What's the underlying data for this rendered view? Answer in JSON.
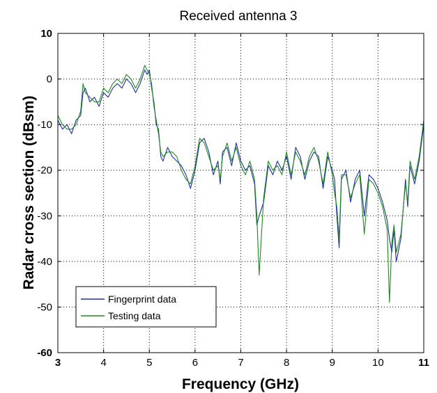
{
  "chart_data": {
    "type": "line",
    "title": "Received antenna 3",
    "xlabel": "Frequency (GHz)",
    "ylabel": "Radar cross section (dBsm)",
    "xlim": [
      3,
      11
    ],
    "ylim": [
      -60,
      10
    ],
    "x_ticks": [
      "3",
      "4",
      "5",
      "6",
      "7",
      "8",
      "9",
      "10",
      "11"
    ],
    "y_ticks": [
      "10",
      "0",
      "-10",
      "-20",
      "-30",
      "-40",
      "-50",
      "-60"
    ],
    "grid": true,
    "grid_style": "dotted",
    "legend_position": "bottom-left",
    "series": [
      {
        "name": "Fingerprint data",
        "color": "#1f2fa8",
        "x": [
          3.0,
          3.1,
          3.2,
          3.3,
          3.4,
          3.5,
          3.55,
          3.6,
          3.7,
          3.8,
          3.9,
          4.0,
          4.1,
          4.2,
          4.3,
          4.4,
          4.5,
          4.6,
          4.7,
          4.8,
          4.9,
          4.95,
          5.0,
          5.05,
          5.1,
          5.15,
          5.2,
          5.25,
          5.3,
          5.4,
          5.5,
          5.6,
          5.7,
          5.8,
          5.9,
          5.95,
          6.0,
          6.1,
          6.2,
          6.3,
          6.4,
          6.5,
          6.55,
          6.6,
          6.7,
          6.8,
          6.9,
          7.0,
          7.1,
          7.2,
          7.3,
          7.35,
          7.4,
          7.5,
          7.6,
          7.7,
          7.8,
          7.9,
          8.0,
          8.1,
          8.2,
          8.3,
          8.4,
          8.5,
          8.6,
          8.7,
          8.8,
          8.9,
          9.0,
          9.05,
          9.1,
          9.15,
          9.2,
          9.3,
          9.4,
          9.5,
          9.6,
          9.7,
          9.8,
          9.9,
          10.0,
          10.1,
          10.2,
          10.25,
          10.3,
          10.35,
          10.4,
          10.5,
          10.6,
          10.65,
          10.7,
          10.8,
          10.9,
          11.0
        ],
        "values": [
          -9,
          -11,
          -10,
          -12,
          -9,
          -8,
          -3,
          -2,
          -5,
          -4,
          -6,
          -3,
          -4,
          -2,
          -1,
          -2,
          0,
          -1,
          -3,
          -1,
          2,
          1,
          2,
          -2,
          -5,
          -10,
          -11,
          -17,
          -18,
          -15,
          -17,
          -18,
          -19,
          -21,
          -24,
          -22,
          -20,
          -14,
          -13,
          -16,
          -21,
          -18,
          -23,
          -16,
          -15,
          -19,
          -14,
          -18,
          -20,
          -19,
          -23,
          -32,
          -30,
          -27,
          -19,
          -21,
          -18,
          -20,
          -17,
          -22,
          -15,
          -17,
          -22,
          -18,
          -16,
          -17,
          -24,
          -17,
          -20,
          -22,
          -30,
          -37,
          -22,
          -20,
          -27,
          -22,
          -20,
          -30,
          -21,
          -22,
          -24,
          -27,
          -31,
          -35,
          -38,
          -33,
          -40,
          -35,
          -22,
          -28,
          -19,
          -23,
          -18,
          -10
        ]
      },
      {
        "name": "Testing data",
        "color": "#1f8a1f",
        "x": [
          3.0,
          3.1,
          3.2,
          3.3,
          3.4,
          3.5,
          3.55,
          3.6,
          3.7,
          3.8,
          3.9,
          4.0,
          4.1,
          4.2,
          4.3,
          4.4,
          4.5,
          4.6,
          4.7,
          4.8,
          4.9,
          4.95,
          5.0,
          5.05,
          5.1,
          5.15,
          5.2,
          5.25,
          5.3,
          5.4,
          5.5,
          5.6,
          5.7,
          5.8,
          5.9,
          5.95,
          6.0,
          6.1,
          6.2,
          6.3,
          6.4,
          6.5,
          6.55,
          6.6,
          6.7,
          6.8,
          6.9,
          7.0,
          7.1,
          7.2,
          7.3,
          7.35,
          7.4,
          7.5,
          7.6,
          7.7,
          7.8,
          7.9,
          8.0,
          8.1,
          8.2,
          8.3,
          8.4,
          8.5,
          8.6,
          8.7,
          8.8,
          8.9,
          9.0,
          9.05,
          9.1,
          9.15,
          9.2,
          9.3,
          9.4,
          9.5,
          9.6,
          9.7,
          9.8,
          9.9,
          10.0,
          10.1,
          10.2,
          10.25,
          10.3,
          10.35,
          10.4,
          10.5,
          10.6,
          10.65,
          10.7,
          10.8,
          10.9,
          11.0
        ],
        "values": [
          -8,
          -10,
          -11,
          -11,
          -10,
          -7,
          -1,
          -3,
          -4,
          -5,
          -5,
          -2,
          -3,
          -1,
          0,
          -1,
          1,
          0,
          -2,
          0,
          3,
          2,
          1,
          -1,
          -6,
          -9,
          -12,
          -16,
          -17,
          -16,
          -16,
          -17,
          -20,
          -22,
          -23,
          -21,
          -19,
          -13,
          -14,
          -17,
          -20,
          -19,
          -22,
          -17,
          -14,
          -18,
          -15,
          -19,
          -21,
          -18,
          -22,
          -30,
          -43,
          -26,
          -18,
          -20,
          -19,
          -21,
          -16,
          -21,
          -16,
          -18,
          -21,
          -17,
          -15,
          -18,
          -23,
          -16,
          -21,
          -25,
          -28,
          -35,
          -21,
          -21,
          -26,
          -23,
          -21,
          -34,
          -22,
          -23,
          -25,
          -28,
          -33,
          -49,
          -36,
          -32,
          -38,
          -34,
          -23,
          -27,
          -18,
          -22,
          -17,
          -9
        ]
      }
    ]
  }
}
